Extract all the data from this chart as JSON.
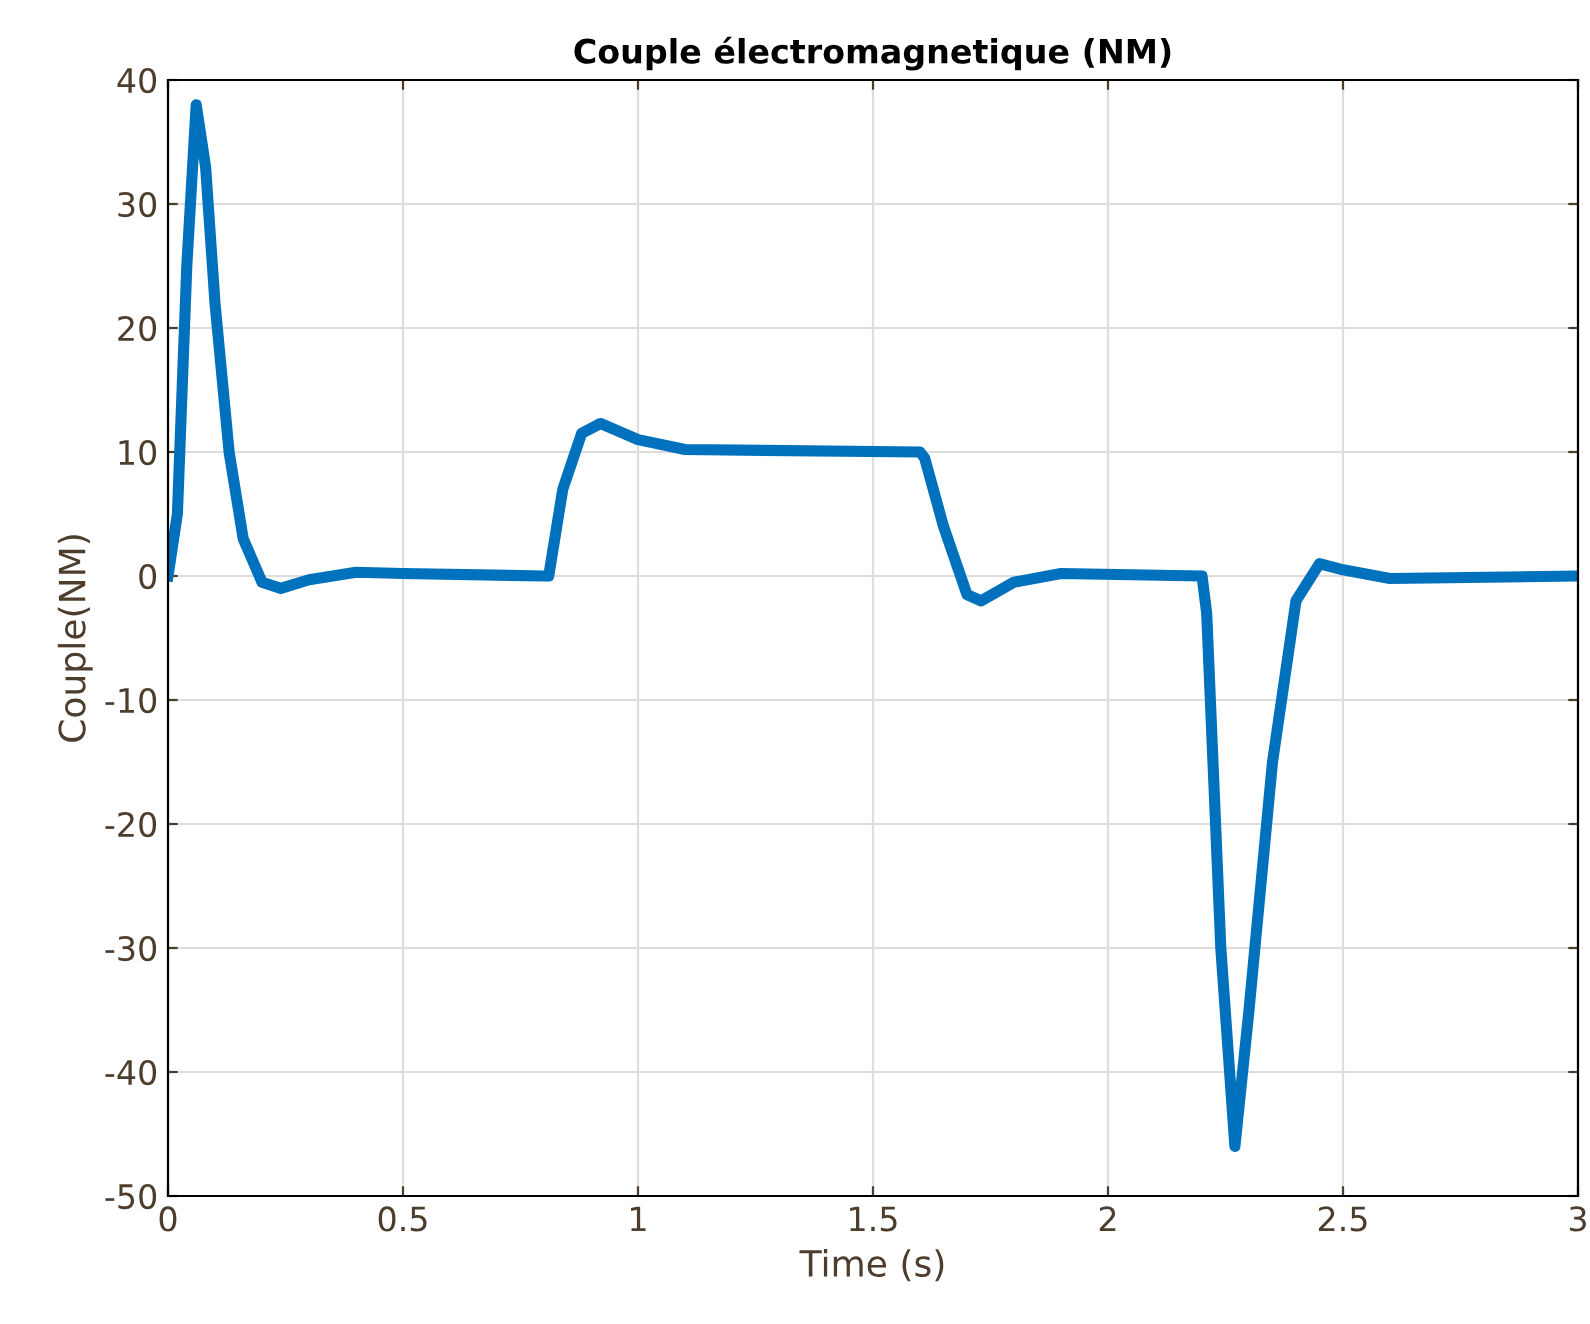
{
  "chart_data": {
    "type": "line",
    "title": "Couple électromagnetique (NM)",
    "xlabel": "Time (s)",
    "ylabel": "Couple(NM)",
    "series": [
      {
        "color": "#0072bd",
        "x": [
          0,
          0.02,
          0.04,
          0.06,
          0.08,
          0.1,
          0.13,
          0.16,
          0.2,
          0.24,
          0.3,
          0.4,
          0.5,
          0.8,
          0.81,
          0.84,
          0.88,
          0.92,
          1.0,
          1.1,
          1.6,
          1.61,
          1.65,
          1.7,
          1.73,
          1.8,
          1.9,
          2.2,
          2.21,
          2.24,
          2.27,
          2.3,
          2.35,
          2.4,
          2.45,
          2.5,
          2.6,
          3.0
        ],
        "values": [
          0,
          5,
          25,
          38,
          33,
          22,
          10,
          3,
          -0.5,
          -1,
          -0.3,
          0.3,
          0.2,
          0,
          0,
          7,
          11.5,
          12.3,
          11,
          10.2,
          10,
          9.5,
          4,
          -1.5,
          -2,
          -0.5,
          0.2,
          0,
          -3,
          -30,
          -46,
          -35,
          -15,
          -2,
          1,
          0.5,
          -0.2,
          0
        ]
      }
    ],
    "xlim": [
      0,
      3
    ],
    "xticks": [
      0,
      0.5,
      1,
      1.5,
      2,
      2.5,
      3
    ],
    "ylim": [
      -50,
      40
    ],
    "yticks": [
      -50,
      -40,
      -30,
      -20,
      -10,
      0,
      10,
      20,
      30,
      40
    ],
    "grid": true,
    "legend": false,
    "marker": "none",
    "line_style": "solid"
  }
}
